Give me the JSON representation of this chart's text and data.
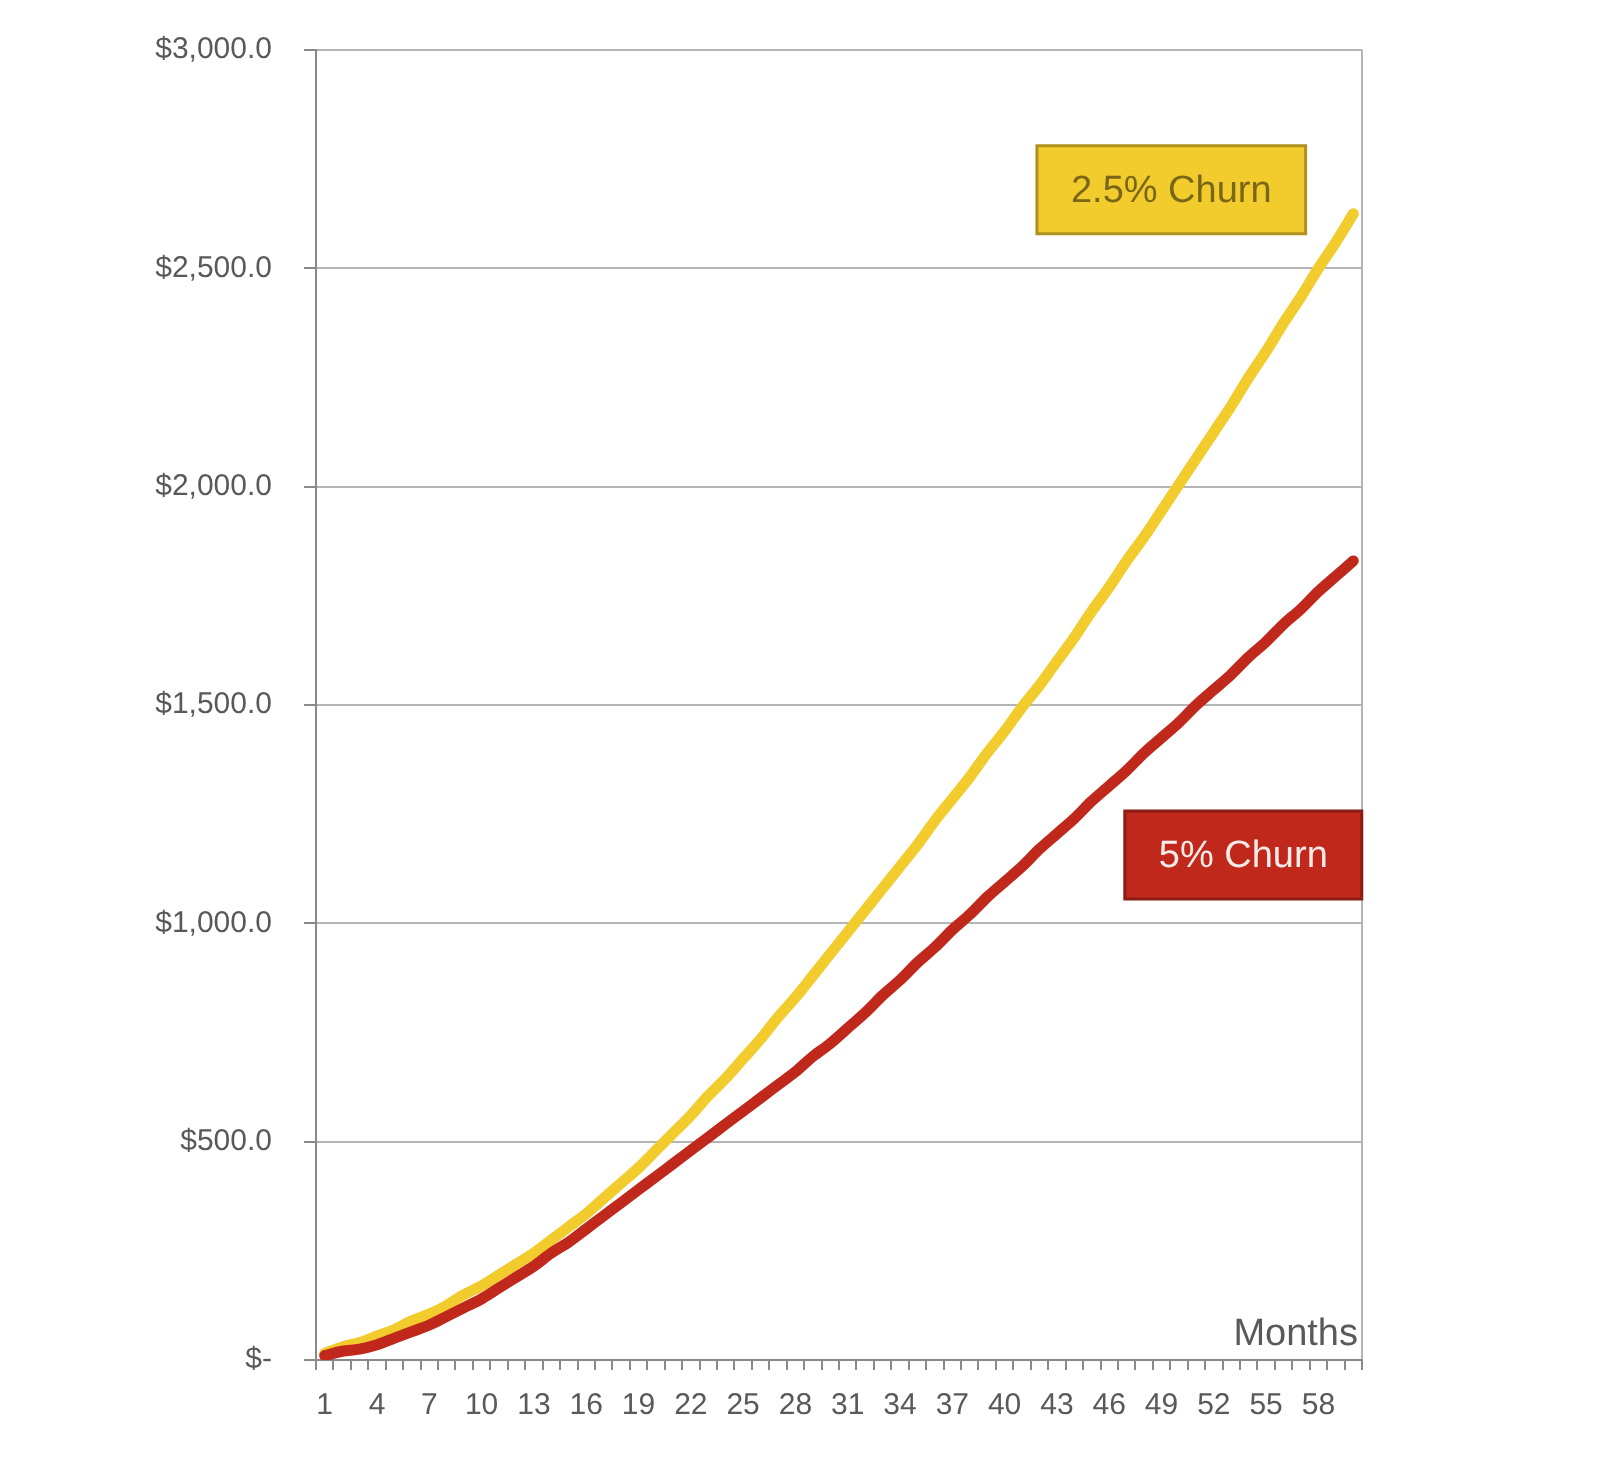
{
  "chart_data": {
    "type": "line",
    "xlabel": "Months",
    "categories": [
      "1",
      null,
      null,
      "4",
      null,
      null,
      "7",
      null,
      null,
      "10",
      null,
      null,
      "13",
      null,
      null,
      "16",
      null,
      null,
      "19",
      null,
      null,
      "22",
      null,
      null,
      "25",
      null,
      null,
      "28",
      null,
      null,
      "31",
      null,
      null,
      "34",
      null,
      null,
      "37",
      null,
      null,
      "40",
      null,
      null,
      "43",
      null,
      null,
      "46",
      null,
      null,
      "49",
      null,
      null,
      "52",
      null,
      null,
      "55",
      null,
      null,
      "58",
      null,
      null
    ],
    "series": [
      {
        "name": "2.5% Churn",
        "color": "#f2cb2d",
        "values": [
          15,
          30,
          40,
          55,
          70,
          90,
          105,
          125,
          150,
          170,
          195,
          220,
          245,
          275,
          305,
          335,
          370,
          405,
          440,
          480,
          520,
          560,
          605,
          645,
          690,
          735,
          785,
          830,
          880,
          930,
          980,
          1030,
          1080,
          1130,
          1180,
          1235,
          1285,
          1335,
          1390,
          1440,
          1495,
          1545,
          1600,
          1655,
          1715,
          1770,
          1830,
          1885,
          1945,
          2005,
          2065,
          2125,
          2185,
          2250,
          2310,
          2375,
          2435,
          2500,
          2560,
          2625
        ]
      },
      {
        "name": "5% Churn",
        "color": "#c0281c",
        "values": [
          10,
          20,
          25,
          35,
          50,
          65,
          80,
          100,
          120,
          140,
          165,
          190,
          215,
          245,
          270,
          300,
          330,
          360,
          390,
          420,
          450,
          480,
          510,
          540,
          570,
          600,
          630,
          660,
          695,
          725,
          760,
          795,
          835,
          870,
          910,
          945,
          985,
          1020,
          1060,
          1095,
          1130,
          1170,
          1205,
          1240,
          1280,
          1315,
          1350,
          1390,
          1425,
          1460,
          1500,
          1535,
          1570,
          1610,
          1645,
          1685,
          1720,
          1760,
          1795,
          1830
        ]
      }
    ],
    "ylim": [
      0,
      3000
    ],
    "yticks": [
      {
        "value": 0,
        "label": "$-"
      },
      {
        "value": 500,
        "label": "$500.0"
      },
      {
        "value": 1000,
        "label": "$1,000.0"
      },
      {
        "value": 1500,
        "label": "$1,500.0"
      },
      {
        "value": 2000,
        "label": "$2,000.0"
      },
      {
        "value": 2500,
        "label": "$2,500.0"
      },
      {
        "value": 3000,
        "label": "$3,000.0"
      }
    ],
    "grid": "y",
    "legend": false,
    "marker": "none"
  }
}
